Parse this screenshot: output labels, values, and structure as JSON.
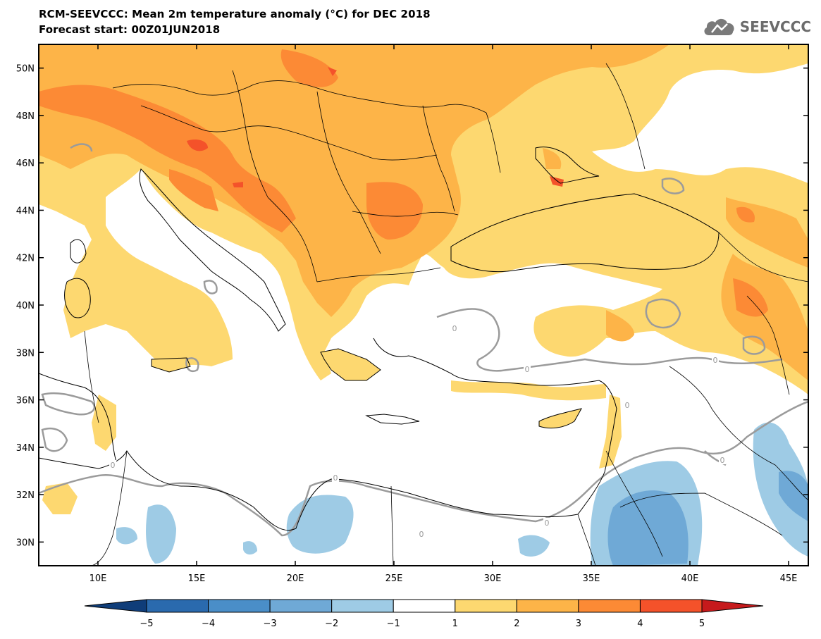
{
  "header": {
    "title_line_1": "RCM-SEEVCCC: Mean 2m temperature anomaly (°C) for DEC 2018",
    "title_line_2": "Forecast start: 00Z01JUN2018"
  },
  "logo": {
    "text": "SEEVCCC",
    "icon": "cloud-logo-icon"
  },
  "map": {
    "projection": "lat-lon",
    "lon_range": [
      7,
      46
    ],
    "lat_range": [
      29,
      51
    ],
    "lon_ticks": [
      "10E",
      "15E",
      "20E",
      "25E",
      "30E",
      "35E",
      "40E",
      "45E"
    ],
    "lat_ticks": [
      "30N",
      "32N",
      "34N",
      "36N",
      "38N",
      "40N",
      "42N",
      "44N",
      "46N",
      "48N",
      "50N"
    ],
    "contour_label": "0",
    "colors": {
      "border": "#000000",
      "zero_contour": "#9b9b9b"
    }
  },
  "colorbar": {
    "labels": [
      "−5",
      "−4",
      "−3",
      "−2",
      "−1",
      "1",
      "2",
      "3",
      "4",
      "5"
    ],
    "colors": [
      "#0f3d79",
      "#2a6aae",
      "#4a8ec8",
      "#6fa9d6",
      "#9ecbe5",
      "#ffffff",
      "#fdd870",
      "#fdb448",
      "#fc8a35",
      "#f4522a",
      "#c61a1c"
    ]
  }
}
